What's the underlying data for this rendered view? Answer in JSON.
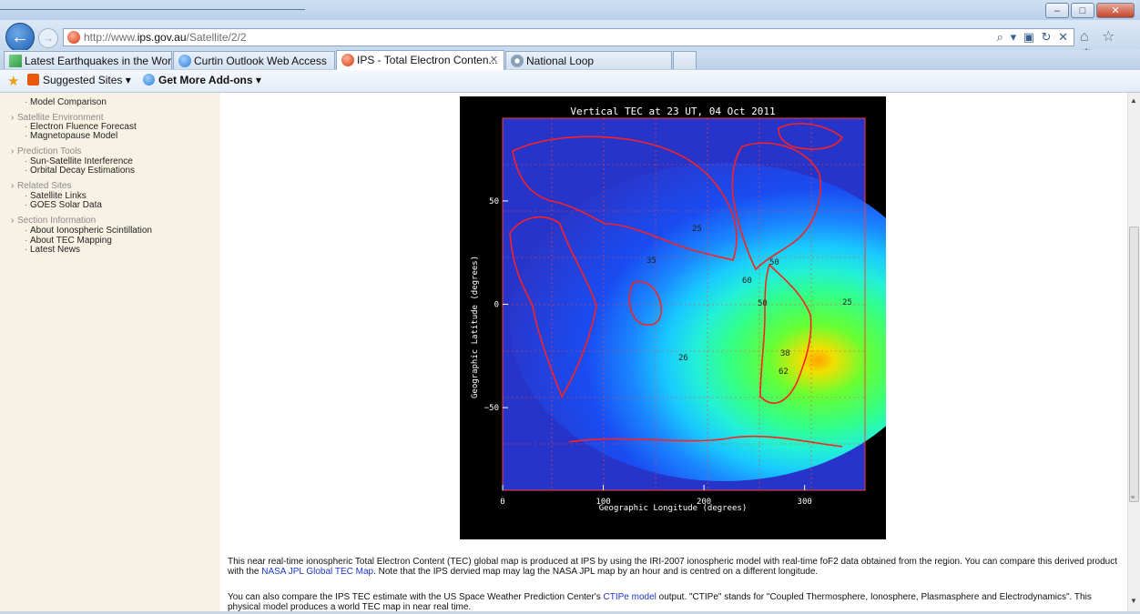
{
  "browser": {
    "url_prefix": "http://www.",
    "url_domain": "ips.gov.au",
    "url_path": "/Satellite/2/2",
    "window_buttons": {
      "minimize": "–",
      "maximize": "□",
      "close": "✕"
    },
    "addr_icons": "⌕ ▾ ▣ ↻ ✕",
    "right_icons": "⌂ ☆ ⚙",
    "back_glyph": "←",
    "forward_glyph": "→"
  },
  "tabs": [
    {
      "label": "Latest Earthquakes in the Worl...",
      "icon_color": "#2f9e44"
    },
    {
      "label": "Curtin Outlook Web Access",
      "icon_color": "#2f7fd6"
    },
    {
      "label": "IPS - Total Electron Conten...",
      "icon_color": "#d4380d",
      "close": "✕"
    },
    {
      "label": "National Loop",
      "icon_color": "#8aa0b8"
    }
  ],
  "favorites": {
    "star": "★",
    "suggested": "Suggested Sites ▾",
    "addons": "Get More Add-ons ▾"
  },
  "sidebar": {
    "items": [
      {
        "kind": "item",
        "label": "Model Comparison"
      },
      {
        "kind": "head",
        "label": "Satellite Environment"
      },
      {
        "kind": "item",
        "label": "Electron Fluence Forecast"
      },
      {
        "kind": "item",
        "label": "Magnetopause Model"
      },
      {
        "kind": "head",
        "label": "Prediction Tools"
      },
      {
        "kind": "item",
        "label": "Sun-Satellite Interference"
      },
      {
        "kind": "item",
        "label": "Orbital Decay Estimations"
      },
      {
        "kind": "head",
        "label": "Related Sites"
      },
      {
        "kind": "item",
        "label": "Satellite Links"
      },
      {
        "kind": "item",
        "label": "GOES Solar Data"
      },
      {
        "kind": "head",
        "label": "Section Information"
      },
      {
        "kind": "item",
        "label": "About Ionospheric Scintillation"
      },
      {
        "kind": "item",
        "label": "About TEC Mapping"
      },
      {
        "kind": "item",
        "label": "Latest News"
      }
    ]
  },
  "map": {
    "title": "Vertical TEC at 23 UT, 04 Oct 2011",
    "xlabel": "Geographic Longitude (degrees)",
    "ylabel": "Geographic Latitude (degrees)",
    "x_ticks": [
      "0",
      "100",
      "200",
      "300"
    ],
    "y_ticks": [
      "50",
      "0",
      "−50"
    ],
    "contour_labels": [
      "25",
      "35",
      "50",
      "60",
      "38",
      "26",
      "50",
      "25",
      "62"
    ]
  },
  "chart_data": {
    "type": "heatmap",
    "title": "Vertical TEC at 23 UT, 04 Oct 2011",
    "xlabel": "Geographic Longitude (degrees)",
    "ylabel": "Geographic Latitude (degrees)",
    "xlim": [
      0,
      360
    ],
    "ylim": [
      -90,
      90
    ],
    "x_ticks": [
      0,
      100,
      200,
      300
    ],
    "y_ticks": [
      50,
      0,
      -50
    ],
    "contour_values": [
      25,
      35,
      50,
      60,
      38,
      26,
      50,
      25,
      62
    ]
  },
  "content": {
    "p1_a": "This near real-time ionospheric Total Electron Content (TEC) global map is produced at IPS by using the IRI-2007 ionospheric model with real-time foF2 data obtained from the region. You can compare this derived product with the ",
    "p1_link": "NASA JPL Global TEC Map",
    "p1_b": ". Note that the IPS dervied map may lag the NASA JPL map by an hour and is centred on a different longitude.",
    "p2_a": "You can also compare the IPS TEC estimate with the US Space Weather Prediction Center's ",
    "p2_link": "CTIPe model",
    "p2_b": " output. \"CTIPe\" stands for \"Coupled Thermosphere, Ionosphere, Plasmasphere and Electrodynamics\". This physical model produces a world TEC map in near real time."
  },
  "scrollbar": {
    "up": "▲",
    "down": "▼",
    "grip": "≡"
  }
}
